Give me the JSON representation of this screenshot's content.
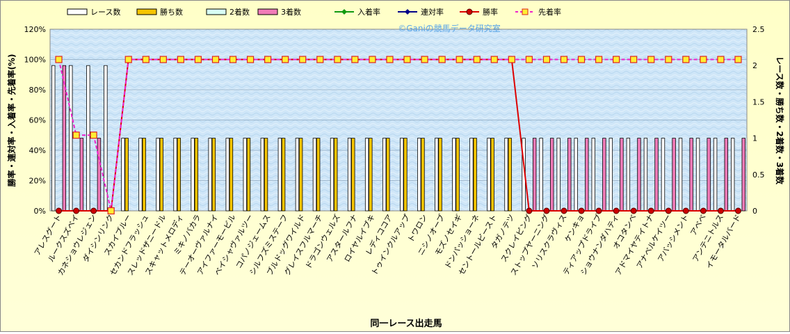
{
  "chart_data": {
    "type": "bar",
    "watermark": "©Ganiの競馬データ研究室",
    "xlabel": "同一レース出走馬",
    "ylabel_left": "勝率・連対率・入着率・先着率(%)",
    "ylabel_right": "レース数・勝ち数・2着数・3着数",
    "left_axis": {
      "min": 0,
      "max": 120,
      "step": 20,
      "unit": "%"
    },
    "right_axis": {
      "min": 0,
      "max": 2.5,
      "step": 0.5
    },
    "legend": [
      {
        "name": "レース数",
        "kind": "bar",
        "color": "#ffffff",
        "stroke": "#000000"
      },
      {
        "name": "勝ち数",
        "kind": "bar",
        "color": "#f5c400",
        "stroke": "#000000"
      },
      {
        "name": "2着数",
        "kind": "bar",
        "color": "#d8fff4",
        "stroke": "#000000"
      },
      {
        "name": "3着数",
        "kind": "bar",
        "color": "#f07bb8",
        "stroke": "#000000"
      },
      {
        "name": "入着率",
        "kind": "line",
        "color": "#119911",
        "marker": "diamond"
      },
      {
        "name": "連対率",
        "kind": "line",
        "color": "#000088",
        "marker": "diamond"
      },
      {
        "name": "勝率",
        "kind": "line",
        "color": "#dd0000",
        "marker": "circle"
      },
      {
        "name": "先着率",
        "kind": "line-dashed",
        "color": "#ee22cc",
        "marker": "square"
      }
    ],
    "categories": [
      "アレスグート",
      "ルークスズベイ",
      "カネショウレジェン",
      "ダイシンリンク",
      "スカイブルー",
      "セカンドフラッシュ",
      "スレッドザニードル",
      "スキャットメロディ",
      "ミキノバカラ",
      "テーオーヴァルナイ",
      "アイファーモービル",
      "ベイシャヴァルツー",
      "コパノジェームス",
      "シルフズミステーフ",
      "ブルドッグワイルド",
      "グレイスフルマーチ",
      "ドラゴンウェルズ",
      "アスタールフナ",
      "ロイヤルイブキ",
      "レディココア",
      "トゥインクルアップ",
      "トワロン",
      "ニシノオーブ",
      "モズノセイギ",
      "ドンパッショーネ",
      "セントールビースト",
      "タガノテツ",
      "スクレイピング",
      "ストップヤーニング",
      "ソリスクラヴィス",
      "ケンキョ",
      "ティアップドライブ",
      "ショウナンダハティ",
      "オコタンベ",
      "アドマイヤテイトナ",
      "アナベルケイツー",
      "アバッシメント",
      "アベベ",
      "アンテニトルス",
      "イモータルバード"
    ],
    "series": [
      {
        "name": "レース数",
        "values": [
          2,
          2,
          2,
          2,
          1,
          1,
          1,
          1,
          1,
          1,
          1,
          1,
          1,
          1,
          1,
          1,
          1,
          1,
          1,
          1,
          1,
          1,
          1,
          1,
          1,
          1,
          1,
          1,
          1,
          1,
          1,
          1,
          1,
          1,
          1,
          1,
          1,
          1,
          1,
          1
        ]
      },
      {
        "name": "勝ち数",
        "values": [
          0,
          0,
          0,
          0,
          1,
          1,
          1,
          1,
          1,
          1,
          1,
          1,
          1,
          1,
          1,
          1,
          1,
          1,
          1,
          1,
          1,
          1,
          1,
          1,
          1,
          1,
          1,
          0,
          0,
          0,
          0,
          0,
          0,
          0,
          0,
          0,
          0,
          0,
          0,
          0
        ]
      },
      {
        "name": "2着数",
        "values": [
          0,
          0,
          0,
          0,
          0,
          0,
          0,
          0,
          0,
          0,
          0,
          0,
          0,
          0,
          0,
          0,
          0,
          0,
          0,
          0,
          0,
          0,
          0,
          0,
          0,
          0,
          0,
          0,
          0,
          0,
          0,
          0,
          0,
          0,
          0,
          0,
          0,
          0,
          0,
          0
        ]
      },
      {
        "name": "3着数",
        "values": [
          2,
          1,
          1,
          0,
          0,
          0,
          0,
          0,
          0,
          0,
          0,
          0,
          0,
          0,
          0,
          0,
          0,
          0,
          0,
          0,
          0,
          0,
          0,
          0,
          0,
          0,
          0,
          1,
          1,
          1,
          1,
          1,
          1,
          1,
          1,
          1,
          1,
          1,
          1,
          1
        ]
      },
      {
        "name": "勝率",
        "values": [
          0,
          0,
          0,
          0,
          100,
          100,
          100,
          100,
          100,
          100,
          100,
          100,
          100,
          100,
          100,
          100,
          100,
          100,
          100,
          100,
          100,
          100,
          100,
          100,
          100,
          100,
          100,
          0,
          0,
          0,
          0,
          0,
          0,
          0,
          0,
          0,
          0,
          0,
          0,
          0
        ]
      },
      {
        "name": "先着率",
        "values": [
          100,
          50,
          50,
          0,
          100,
          100,
          100,
          100,
          100,
          100,
          100,
          100,
          100,
          100,
          100,
          100,
          100,
          100,
          100,
          100,
          100,
          100,
          100,
          100,
          100,
          100,
          100,
          100,
          100,
          100,
          100,
          100,
          100,
          100,
          100,
          100,
          100,
          100,
          100,
          100
        ]
      }
    ]
  }
}
